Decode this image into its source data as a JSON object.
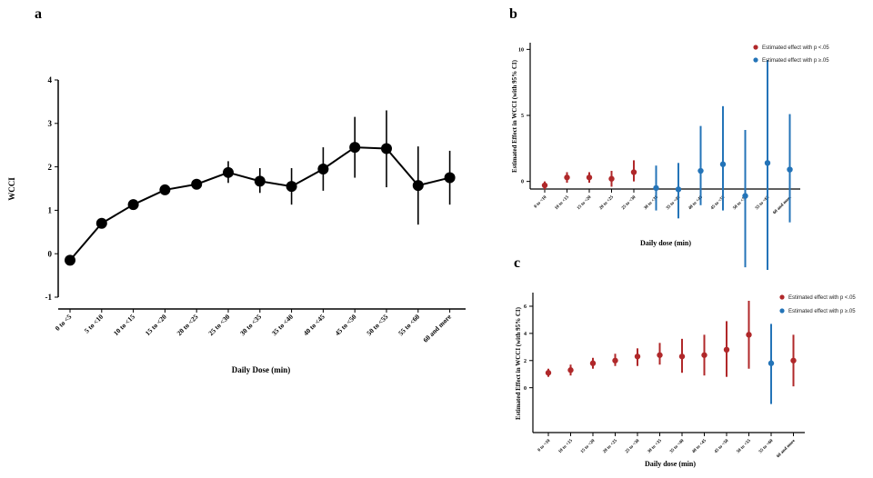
{
  "colors": {
    "black": "#000000",
    "red": "#b0282a",
    "blue": "#2474b8"
  },
  "chart_data": [
    {
      "panel": "a",
      "type": "line",
      "ylabel": "WCCI",
      "xlabel": "Daily Dose (min)",
      "ylim": [
        -1,
        4
      ],
      "yticks": [
        -1,
        0,
        1,
        2,
        3,
        4
      ],
      "categories": [
        "0 to <5",
        "5 to <10",
        "10 to <15",
        "15 to <20",
        "20 to <25",
        "25 to <30",
        "30 to <35",
        "35 to <40",
        "40 to <45",
        "45 to <50",
        "50 to <55",
        "55 to <60",
        "60 and more"
      ],
      "values": [
        -0.15,
        0.7,
        1.13,
        1.47,
        1.6,
        1.87,
        1.67,
        1.55,
        1.95,
        2.45,
        2.42,
        1.57,
        1.75
      ],
      "lower": [
        -0.15,
        0.7,
        1.13,
        1.47,
        1.5,
        1.63,
        1.4,
        1.13,
        1.45,
        1.75,
        1.53,
        0.67,
        1.13
      ],
      "upper": [
        -0.15,
        0.7,
        1.13,
        1.47,
        1.7,
        2.13,
        1.97,
        1.97,
        2.45,
        3.15,
        3.3,
        2.47,
        2.37
      ]
    },
    {
      "panel": "b",
      "type": "scatter",
      "ylabel": "Estimated Effect in WCCI (with 95% CI)",
      "xlabel": "Daily dose (min)",
      "ylim": [
        -0.3,
        10.3
      ],
      "yticks": [
        0,
        5,
        10
      ],
      "ytick_labels": [
        "0",
        "5",
        "10"
      ],
      "categories": [
        "0 to <10",
        "10 to <15",
        "15 to <20",
        "20 to <25",
        "25 to <30",
        "30 to <35",
        "35 to <40",
        "40 to <45",
        "45 to <50",
        "50 to <55",
        "55 to <60",
        "60 and more"
      ],
      "values": [
        -0.3,
        0.3,
        0.3,
        0.2,
        0.7,
        -0.5,
        -0.6,
        0.8,
        1.3,
        -1.1,
        1.4,
        0.9
      ],
      "lower": [
        -0.6,
        -0.1,
        -0.1,
        -0.4,
        0.0,
        -2.2,
        -2.8,
        -1.8,
        -2.2,
        -6.5,
        -6.7,
        -3.1
      ],
      "upper": [
        0.0,
        0.7,
        0.7,
        0.8,
        1.6,
        1.2,
        1.4,
        4.2,
        5.7,
        3.9,
        9.2,
        5.1
      ],
      "significant": [
        true,
        true,
        true,
        true,
        true,
        false,
        false,
        false,
        false,
        false,
        false,
        false
      ],
      "legend": [
        "Estimated effect with p <.05",
        "Estimated effect with p ≥.05"
      ],
      "legend_position": "top-right"
    },
    {
      "panel": "c",
      "type": "scatter",
      "ylabel": "Estimated Effect in WCCI (with 95% CI)",
      "xlabel": "Daily dose (min)",
      "ylim": [
        -2.9,
        6.4
      ],
      "yticks": [
        0,
        2,
        4,
        6
      ],
      "ytick_labels": [
        "0",
        "2",
        "4",
        "6"
      ],
      "categories": [
        "0 to <10",
        "10 to <15",
        "15 to <20",
        "20 to <25",
        "25 to <30",
        "30 to <35",
        "35 to <40",
        "40 to <45",
        "45 to <50",
        "50 to <55",
        "55 to <60",
        "60 and more"
      ],
      "values": [
        1.1,
        1.3,
        1.8,
        2.0,
        2.3,
        2.4,
        2.3,
        2.4,
        2.8,
        3.9,
        1.8,
        2.0
      ],
      "lower": [
        0.8,
        0.9,
        1.4,
        1.6,
        1.6,
        1.7,
        1.1,
        0.9,
        0.8,
        1.4,
        -1.2,
        0.1
      ],
      "upper": [
        1.4,
        1.7,
        2.2,
        2.5,
        2.9,
        3.3,
        3.6,
        3.9,
        4.9,
        6.4,
        4.7,
        3.9
      ],
      "significant": [
        true,
        true,
        true,
        true,
        true,
        true,
        true,
        true,
        true,
        true,
        false,
        true
      ],
      "legend": [
        "Estimated effect with p <.05",
        "Estimated effect with p ≥.05"
      ],
      "legend_position": "top-right"
    }
  ]
}
